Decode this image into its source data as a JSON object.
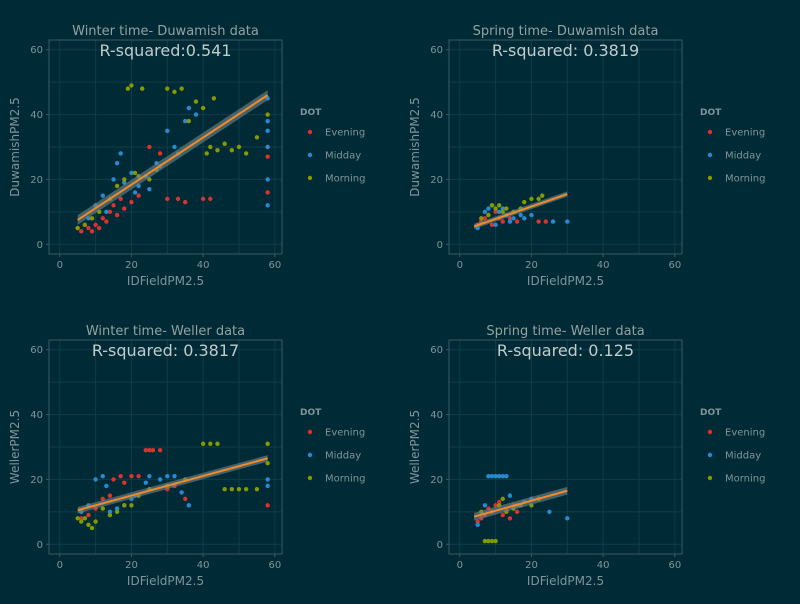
{
  "colors": {
    "background": "#002b36",
    "panel_border": "#3d5a62",
    "grid": "#0f3d47",
    "axis_text": "#7f949a",
    "title_text": "#93a1a1",
    "rsq_text": "#c0cccc",
    "evening": "#dc322f",
    "midday": "#268bd2",
    "morning": "#859900",
    "fit_line": "#f08a28",
    "fit_band": "#6a7f86"
  },
  "chart_data": [
    {
      "type": "scatter",
      "title": "Winter time- Duwamish data",
      "annotation": "R-squared:0.541",
      "xlabel": "IDFieldPM2.5",
      "ylabel": "DuwamishPM2.5",
      "xlim": [
        -3,
        62
      ],
      "ylim": [
        -3,
        63
      ],
      "xticks": [
        0,
        20,
        40,
        60
      ],
      "yticks": [
        0,
        20,
        40,
        60
      ],
      "grid": true,
      "legend": {
        "title": "DOT",
        "position": "right",
        "entries": [
          "Evening",
          "Midday",
          "Morning"
        ]
      },
      "fit": {
        "x": [
          5,
          58
        ],
        "y": [
          7.5,
          46
        ],
        "band": 1.5
      },
      "series": [
        {
          "name": "Evening",
          "points": [
            [
              5,
              5
            ],
            [
              6,
              4
            ],
            [
              7,
              6
            ],
            [
              8,
              5
            ],
            [
              9,
              4
            ],
            [
              10,
              6
            ],
            [
              11,
              5
            ],
            [
              12,
              8
            ],
            [
              13,
              7
            ],
            [
              14,
              10
            ],
            [
              15,
              12
            ],
            [
              16,
              9
            ],
            [
              17,
              14
            ],
            [
              18,
              11
            ],
            [
              20,
              13
            ],
            [
              22,
              15
            ],
            [
              25,
              30
            ],
            [
              28,
              28
            ],
            [
              30,
              14
            ],
            [
              33,
              14
            ],
            [
              35,
              13
            ],
            [
              40,
              14
            ],
            [
              42,
              14
            ],
            [
              58,
              16
            ],
            [
              58,
              30
            ],
            [
              58,
              27
            ]
          ]
        },
        {
          "name": "Midday",
          "points": [
            [
              8,
              8
            ],
            [
              10,
              12
            ],
            [
              12,
              15
            ],
            [
              13,
              10
            ],
            [
              15,
              20
            ],
            [
              16,
              25
            ],
            [
              17,
              28
            ],
            [
              18,
              19
            ],
            [
              20,
              22
            ],
            [
              21,
              16
            ],
            [
              22,
              18
            ],
            [
              24,
              21
            ],
            [
              25,
              17
            ],
            [
              27,
              25
            ],
            [
              28,
              24
            ],
            [
              30,
              35
            ],
            [
              32,
              30
            ],
            [
              33,
              28
            ],
            [
              35,
              38
            ],
            [
              36,
              42
            ],
            [
              38,
              40
            ],
            [
              58,
              30
            ],
            [
              58,
              35
            ],
            [
              58,
              38
            ],
            [
              58,
              45
            ],
            [
              58,
              12
            ],
            [
              58,
              20
            ]
          ]
        },
        {
          "name": "Morning",
          "points": [
            [
              5,
              5
            ],
            [
              7,
              6
            ],
            [
              9,
              8
            ],
            [
              11,
              10
            ],
            [
              14,
              14
            ],
            [
              16,
              18
            ],
            [
              18,
              20
            ],
            [
              19,
              48
            ],
            [
              20,
              49
            ],
            [
              21,
              22
            ],
            [
              22,
              21
            ],
            [
              23,
              48
            ],
            [
              25,
              20
            ],
            [
              27,
              23
            ],
            [
              30,
              48
            ],
            [
              32,
              47
            ],
            [
              34,
              48
            ],
            [
              36,
              38
            ],
            [
              38,
              44
            ],
            [
              40,
              42
            ],
            [
              41,
              28
            ],
            [
              42,
              30
            ],
            [
              43,
              45
            ],
            [
              44,
              29
            ],
            [
              46,
              31
            ],
            [
              48,
              29
            ],
            [
              50,
              30
            ],
            [
              52,
              28
            ],
            [
              55,
              33
            ],
            [
              58,
              40
            ]
          ]
        }
      ]
    },
    {
      "type": "scatter",
      "title": "Spring time- Duwamish data",
      "annotation": "R-squared:  0.3819",
      "xlabel": "IDFieldPM2.5",
      "ylabel": "DuwamishPM2.5",
      "xlim": [
        -3,
        62
      ],
      "ylim": [
        -3,
        63
      ],
      "xticks": [
        0,
        20,
        40,
        60
      ],
      "yticks": [
        0,
        20,
        40,
        60
      ],
      "grid": true,
      "legend": {
        "title": "DOT",
        "position": "right",
        "entries": [
          "Evening",
          "Midday",
          "Morning"
        ]
      },
      "fit": {
        "x": [
          4,
          30
        ],
        "y": [
          5.5,
          15.5
        ],
        "band": 0.8
      },
      "series": [
        {
          "name": "Evening",
          "points": [
            [
              5,
              6
            ],
            [
              6,
              7
            ],
            [
              7,
              8
            ],
            [
              8,
              9
            ],
            [
              9,
              6
            ],
            [
              10,
              10
            ],
            [
              11,
              8
            ],
            [
              12,
              7
            ],
            [
              13,
              9
            ],
            [
              14,
              8
            ],
            [
              16,
              7
            ],
            [
              22,
              7
            ],
            [
              24,
              7
            ]
          ]
        },
        {
          "name": "Midday",
          "points": [
            [
              5,
              5
            ],
            [
              7,
              10
            ],
            [
              8,
              11
            ],
            [
              9,
              12
            ],
            [
              10,
              6
            ],
            [
              11,
              10
            ],
            [
              12,
              11
            ],
            [
              13,
              9
            ],
            [
              14,
              7
            ],
            [
              15,
              8
            ],
            [
              17,
              9
            ],
            [
              18,
              8
            ],
            [
              20,
              9
            ],
            [
              26,
              7
            ],
            [
              30,
              7
            ]
          ]
        },
        {
          "name": "Morning",
          "points": [
            [
              6,
              8
            ],
            [
              8,
              9
            ],
            [
              9,
              12
            ],
            [
              10,
              11
            ],
            [
              11,
              12
            ],
            [
              12,
              10
            ],
            [
              13,
              11
            ],
            [
              15,
              10
            ],
            [
              17,
              11
            ],
            [
              18,
              13
            ],
            [
              20,
              14
            ],
            [
              22,
              14
            ],
            [
              23,
              15
            ]
          ]
        }
      ]
    },
    {
      "type": "scatter",
      "title": "Winter time- Weller data",
      "annotation": "R-squared: 0.3817",
      "xlabel": "IDFieldPM2.5",
      "ylabel": "WellerPM2.5",
      "xlim": [
        -3,
        62
      ],
      "ylim": [
        -3,
        63
      ],
      "xticks": [
        0,
        20,
        40,
        60
      ],
      "yticks": [
        0,
        20,
        40,
        60
      ],
      "grid": true,
      "legend": {
        "title": "DOT",
        "position": "right",
        "entries": [
          "Evening",
          "Midday",
          "Morning"
        ]
      },
      "fit": {
        "x": [
          5,
          58
        ],
        "y": [
          10.5,
          26.5
        ],
        "band": 1.0
      },
      "series": [
        {
          "name": "Evening",
          "points": [
            [
              6,
              8
            ],
            [
              8,
              9
            ],
            [
              10,
              11
            ],
            [
              12,
              14
            ],
            [
              14,
              15
            ],
            [
              15,
              20
            ],
            [
              17,
              21
            ],
            [
              18,
              19
            ],
            [
              20,
              21
            ],
            [
              22,
              21
            ],
            [
              24,
              29
            ],
            [
              25,
              29
            ],
            [
              26,
              29
            ],
            [
              28,
              29
            ],
            [
              30,
              17
            ],
            [
              32,
              18
            ],
            [
              35,
              14
            ],
            [
              58,
              12
            ]
          ]
        },
        {
          "name": "Midday",
          "points": [
            [
              6,
              10
            ],
            [
              8,
              12
            ],
            [
              10,
              20
            ],
            [
              12,
              21
            ],
            [
              13,
              18
            ],
            [
              14,
              10
            ],
            [
              16,
              11
            ],
            [
              18,
              12
            ],
            [
              20,
              14
            ],
            [
              21,
              15
            ],
            [
              24,
              19
            ],
            [
              25,
              21
            ],
            [
              28,
              20
            ],
            [
              30,
              21
            ],
            [
              32,
              21
            ],
            [
              34,
              16
            ],
            [
              36,
              12
            ],
            [
              58,
              20
            ],
            [
              58,
              18
            ]
          ]
        },
        {
          "name": "Morning",
          "points": [
            [
              5,
              8
            ],
            [
              6,
              7
            ],
            [
              7,
              8
            ],
            [
              8,
              6
            ],
            [
              9,
              5
            ],
            [
              10,
              7
            ],
            [
              12,
              11
            ],
            [
              14,
              9
            ],
            [
              16,
              10
            ],
            [
              18,
              12
            ],
            [
              20,
              12
            ],
            [
              22,
              15
            ],
            [
              25,
              17
            ],
            [
              30,
              18
            ],
            [
              35,
              20
            ],
            [
              40,
              31
            ],
            [
              42,
              31
            ],
            [
              44,
              31
            ],
            [
              46,
              17
            ],
            [
              48,
              17
            ],
            [
              50,
              17
            ],
            [
              52,
              17
            ],
            [
              55,
              17
            ],
            [
              58,
              31
            ],
            [
              58,
              25
            ]
          ]
        }
      ]
    },
    {
      "type": "scatter",
      "title": "Spring time- Weller data",
      "annotation": "R-squared: 0.125",
      "xlabel": "IDFieldPM2.5",
      "ylabel": "WellerPM2.5",
      "xlim": [
        -3,
        62
      ],
      "ylim": [
        -3,
        63
      ],
      "xticks": [
        0,
        20,
        40,
        60
      ],
      "yticks": [
        0,
        20,
        40,
        60
      ],
      "grid": true,
      "legend": {
        "title": "DOT",
        "position": "right",
        "entries": [
          "Evening",
          "Midday",
          "Morning"
        ]
      },
      "fit": {
        "x": [
          4,
          30
        ],
        "y": [
          8.5,
          16.5
        ],
        "band": 1.2
      },
      "series": [
        {
          "name": "Evening",
          "points": [
            [
              5,
              7
            ],
            [
              6,
              8
            ],
            [
              7,
              9
            ],
            [
              8,
              11
            ],
            [
              9,
              10
            ],
            [
              10,
              12
            ],
            [
              11,
              13
            ],
            [
              12,
              9
            ],
            [
              13,
              11
            ],
            [
              14,
              8
            ],
            [
              15,
              12
            ],
            [
              16,
              10
            ]
          ]
        },
        {
          "name": "Midday",
          "points": [
            [
              5,
              6
            ],
            [
              7,
              12
            ],
            [
              8,
              21
            ],
            [
              9,
              21
            ],
            [
              10,
              21
            ],
            [
              11,
              21
            ],
            [
              12,
              21
            ],
            [
              13,
              21
            ],
            [
              14,
              15
            ],
            [
              16,
              12
            ],
            [
              18,
              13
            ],
            [
              20,
              14
            ],
            [
              25,
              10
            ],
            [
              30,
              8
            ]
          ]
        },
        {
          "name": "Morning",
          "points": [
            [
              6,
              10
            ],
            [
              7,
              1
            ],
            [
              8,
              1
            ],
            [
              9,
              1
            ],
            [
              10,
              1
            ],
            [
              11,
              12
            ],
            [
              12,
              14
            ],
            [
              13,
              10
            ],
            [
              15,
              11
            ],
            [
              17,
              12
            ],
            [
              20,
              12
            ],
            [
              22,
              14
            ]
          ]
        }
      ]
    }
  ]
}
